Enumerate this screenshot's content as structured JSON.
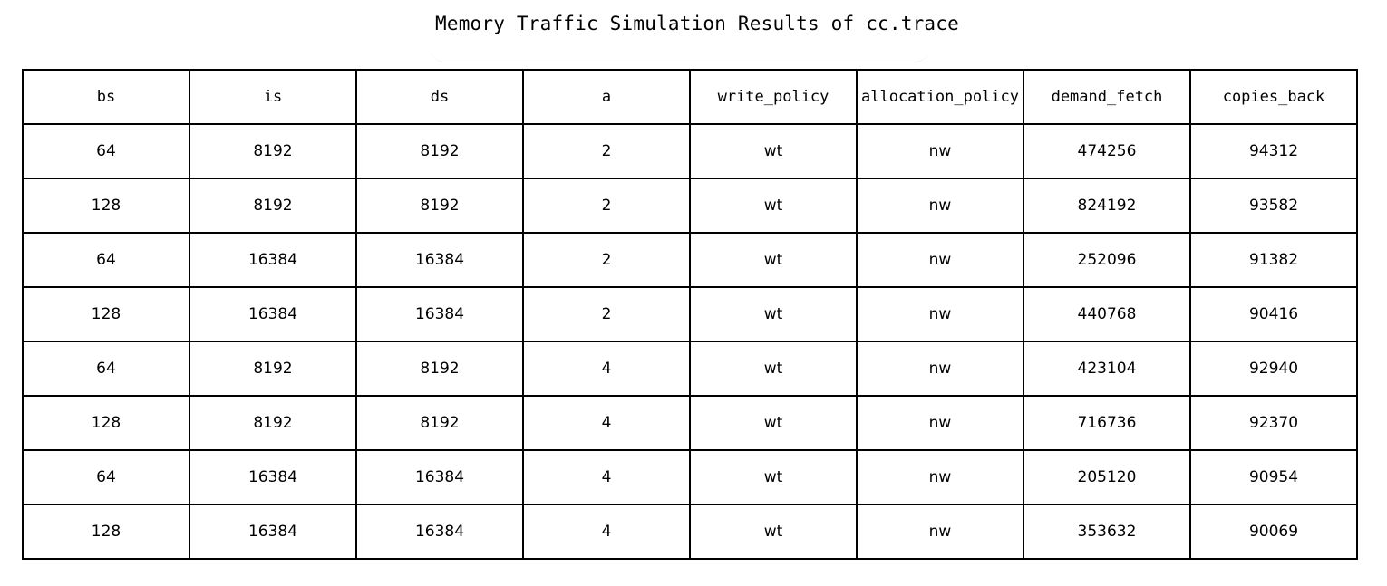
{
  "chart_data": {
    "type": "table",
    "title": "Memory Traffic Simulation Results of cc.trace",
    "columns": [
      "bs",
      "is",
      "ds",
      "a",
      "write_policy",
      "allocation_policy",
      "demand_fetch",
      "copies_back"
    ],
    "rows": [
      [
        "64",
        "8192",
        "8192",
        "2",
        "wt",
        "nw",
        "474256",
        "94312"
      ],
      [
        "128",
        "8192",
        "8192",
        "2",
        "wt",
        "nw",
        "824192",
        "93582"
      ],
      [
        "64",
        "16384",
        "16384",
        "2",
        "wt",
        "nw",
        "252096",
        "91382"
      ],
      [
        "128",
        "16384",
        "16384",
        "2",
        "wt",
        "nw",
        "440768",
        "90416"
      ],
      [
        "64",
        "8192",
        "8192",
        "4",
        "wt",
        "nw",
        "423104",
        "92940"
      ],
      [
        "128",
        "8192",
        "8192",
        "4",
        "wt",
        "nw",
        "716736",
        "92370"
      ],
      [
        "64",
        "16384",
        "16384",
        "4",
        "wt",
        "nw",
        "205120",
        "90954"
      ],
      [
        "128",
        "16384",
        "16384",
        "4",
        "wt",
        "nw",
        "353632",
        "90069"
      ]
    ]
  }
}
